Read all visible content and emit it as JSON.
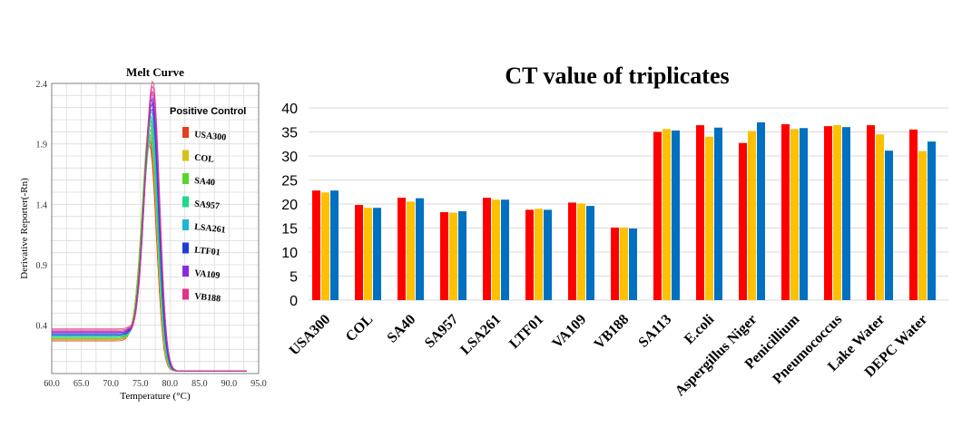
{
  "chart_data": [
    {
      "type": "line",
      "title": "Melt Curve",
      "xlabel": "Temperature (°C)",
      "ylabel": "Derivative Reporter(-Rn)",
      "xlim": [
        60,
        95
      ],
      "ylim": [
        0,
        2.4
      ],
      "x_ticks": [
        "60.0",
        "65.0",
        "70.0",
        "75.0",
        "80.0",
        "85.0",
        "90.0",
        "95.0"
      ],
      "y_ticks": [
        "0.4",
        "0.9",
        "1.4",
        "1.9",
        "2.4"
      ],
      "grid": true,
      "legend_title": "Positive Control",
      "legend_position": "top-right",
      "series": [
        {
          "name": "USA300",
          "color": "#e83d1c",
          "peak": 1.95,
          "base": 0.27
        },
        {
          "name": "COL",
          "color": "#d4c21a",
          "peak": 2.05,
          "base": 0.28
        },
        {
          "name": "SA40",
          "color": "#56d62a",
          "peak": 2.12,
          "base": 0.29
        },
        {
          "name": "SA957",
          "color": "#1fd98a",
          "peak": 2.0,
          "base": 0.3
        },
        {
          "name": "LSA261",
          "color": "#1ab8d4",
          "peak": 2.15,
          "base": 0.31
        },
        {
          "name": "LTF01",
          "color": "#1f3ed4",
          "peak": 2.25,
          "base": 0.32
        },
        {
          "name": "VA109",
          "color": "#8a2be2",
          "peak": 2.3,
          "base": 0.33
        },
        {
          "name": "VB188",
          "color": "#e0338a",
          "peak": 2.4,
          "base": 0.35
        }
      ]
    },
    {
      "type": "bar",
      "title": "CT value of triplicates",
      "ylim": [
        0,
        40
      ],
      "y_ticks": [
        "0",
        "5",
        "10",
        "15",
        "20",
        "25",
        "30",
        "35",
        "40"
      ],
      "grid": true,
      "categories": [
        "USA300",
        "COL",
        "SA40",
        "SA957",
        "LSA261",
        "LTF01",
        "VA109",
        "VB188",
        "SA113",
        "E.coli",
        "Aspergillus Niger",
        "Penicillium",
        "Pneumococcus",
        "Lake Water",
        "DEPC Water"
      ],
      "series": [
        {
          "color": "#ff0000",
          "values": [
            22.8,
            19.8,
            21.3,
            18.3,
            21.3,
            18.8,
            20.3,
            15.1,
            35.0,
            36.4,
            32.7,
            36.6,
            36.2,
            36.4,
            35.5
          ]
        },
        {
          "color": "#ffc000",
          "values": [
            22.4,
            19.2,
            20.5,
            18.2,
            20.9,
            19.0,
            20.1,
            15.1,
            35.6,
            34.0,
            35.2,
            35.6,
            36.4,
            34.5,
            31.0
          ]
        },
        {
          "color": "#0070c0",
          "values": [
            22.8,
            19.2,
            21.2,
            18.5,
            20.9,
            18.8,
            19.6,
            14.9,
            35.3,
            35.9,
            37.0,
            35.8,
            36.0,
            31.1,
            33.0
          ]
        }
      ]
    }
  ]
}
